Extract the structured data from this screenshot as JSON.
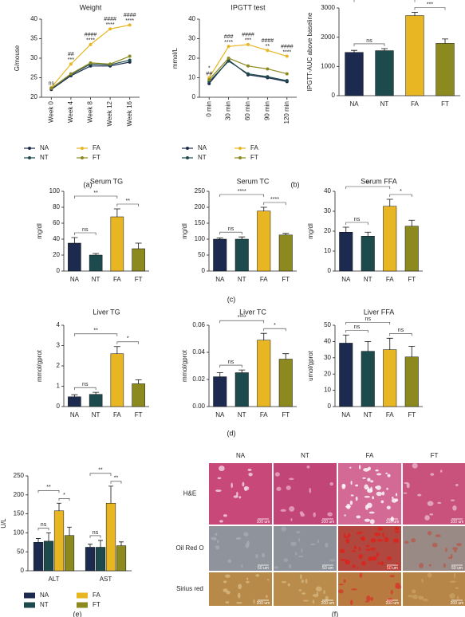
{
  "panel_labels": [
    "(a)",
    "(b)",
    "(c)",
    "(d)",
    "(e)",
    "(f)"
  ],
  "chart_data": [
    {
      "type": "line",
      "title": "Weight",
      "ylabel": "G/mouse",
      "categories": [
        "Week 0",
        "Week 4",
        "Week 8",
        "Week 12",
        "Week 16"
      ],
      "ylim": [
        20,
        40
      ],
      "yticks": [
        20,
        25,
        30,
        35,
        40
      ],
      "series": [
        {
          "name": "NA",
          "color": "#1b2a4e",
          "values": [
            22,
            25.5,
            28,
            28,
            29
          ]
        },
        {
          "name": "NT",
          "color": "#1d4a4c",
          "values": [
            22.3,
            25.8,
            28.5,
            28.3,
            29.5
          ]
        },
        {
          "name": "FA",
          "color": "#e8b623",
          "values": [
            22.5,
            28.5,
            33.5,
            37.5,
            38.5
          ]
        },
        {
          "name": "FT",
          "color": "#8c8a1e",
          "values": [
            22.3,
            26,
            28.8,
            28.5,
            30.5
          ]
        }
      ],
      "annotations": [
        [
          "ns"
        ],
        [
          "##",
          "***"
        ],
        [
          "####",
          "****"
        ],
        [
          "####",
          "****"
        ],
        [
          "####",
          "****"
        ]
      ]
    },
    {
      "type": "line",
      "title": "IPGTT test",
      "ylabel": "mmol/L",
      "categories": [
        "0 min",
        "30 min",
        "60 min",
        "90 min",
        "120 min"
      ],
      "ylim": [
        0,
        40
      ],
      "yticks": [
        0,
        10,
        20,
        30,
        40
      ],
      "series": [
        {
          "name": "NA",
          "color": "#1b2a4e",
          "values": [
            7,
            19,
            11.5,
            10,
            8
          ]
        },
        {
          "name": "NT",
          "color": "#1d4a4c",
          "values": [
            8,
            18.5,
            12,
            10.5,
            8.5
          ]
        },
        {
          "name": "FA",
          "color": "#e8b623",
          "values": [
            10,
            26,
            27,
            24,
            21
          ]
        },
        {
          "name": "FT",
          "color": "#8c8a1e",
          "values": [
            9,
            20,
            16,
            14.5,
            12
          ]
        }
      ],
      "annotations": [
        [
          "*",
          "##"
        ],
        [
          "###",
          "****"
        ],
        [
          "####",
          "***"
        ],
        [
          "####",
          "**"
        ],
        [
          "####",
          "****"
        ]
      ]
    },
    {
      "type": "bar",
      "ylabel": "IPGTT-AUC above baseline",
      "categories": [
        "NA",
        "NT",
        "FA",
        "FT"
      ],
      "values": [
        1480,
        1540,
        2740,
        1790
      ],
      "errors": [
        70,
        70,
        110,
        150
      ],
      "colors": [
        "#1b2a4e",
        "#1d4a4c",
        "#e8b623",
        "#8c8a1e"
      ],
      "ylim": [
        0,
        3000
      ],
      "yticks": [
        0,
        1000,
        2000,
        3000
      ],
      "brackets": [
        {
          "pair": [
            0,
            1
          ],
          "label": "ns"
        },
        {
          "pair": [
            0,
            2
          ],
          "label": "****"
        },
        {
          "pair": [
            2,
            3
          ],
          "label": "***"
        }
      ]
    },
    {
      "type": "bar",
      "title": "Serum TG",
      "ylabel": "mg/dl",
      "categories": [
        "NA",
        "NT",
        "FA",
        "FT"
      ],
      "values": [
        35,
        20,
        68,
        28
      ],
      "errors": [
        7,
        2,
        10,
        7
      ],
      "colors": [
        "#1b2a4e",
        "#1d4a4c",
        "#e8b623",
        "#8c8a1e"
      ],
      "ylim": [
        0,
        100
      ],
      "yticks": [
        0,
        20,
        40,
        60,
        80,
        100
      ],
      "brackets": [
        {
          "pair": [
            0,
            1
          ],
          "label": "ns"
        },
        {
          "pair": [
            0,
            2
          ],
          "label": "**"
        },
        {
          "pair": [
            2,
            3
          ],
          "label": "**"
        }
      ]
    },
    {
      "type": "bar",
      "title": "Serum TC",
      "ylabel": "mg/dl",
      "categories": [
        "NA",
        "NT",
        "FA",
        "FT"
      ],
      "values": [
        100,
        100,
        188,
        113
      ],
      "errors": [
        4,
        7,
        12,
        5
      ],
      "colors": [
        "#1b2a4e",
        "#1d4a4c",
        "#e8b623",
        "#8c8a1e"
      ],
      "ylim": [
        0,
        250
      ],
      "yticks": [
        0,
        50,
        100,
        150,
        200,
        250
      ],
      "brackets": [
        {
          "pair": [
            0,
            1
          ],
          "label": "ns"
        },
        {
          "pair": [
            0,
            2
          ],
          "label": "****"
        },
        {
          "pair": [
            2,
            3
          ],
          "label": "****"
        }
      ]
    },
    {
      "type": "bar",
      "title": "Serum FFA",
      "ylabel": "mg/dl",
      "categories": [
        "NA",
        "NT",
        "FA",
        "FT"
      ],
      "values": [
        19.5,
        17.5,
        32.5,
        22.5
      ],
      "errors": [
        2.5,
        2,
        3.5,
        3
      ],
      "colors": [
        "#1b2a4e",
        "#1d4a4c",
        "#e8b623",
        "#8c8a1e"
      ],
      "ylim": [
        0,
        40
      ],
      "yticks": [
        0,
        10,
        20,
        30,
        40
      ],
      "brackets": [
        {
          "pair": [
            0,
            1
          ],
          "label": "ns"
        },
        {
          "pair": [
            0,
            2
          ],
          "label": "**"
        },
        {
          "pair": [
            2,
            3
          ],
          "label": "*"
        }
      ]
    },
    {
      "type": "bar",
      "title": "Liver TG",
      "ylabel": "mmol/gprot",
      "categories": [
        "NA",
        "NT",
        "FA",
        "FT"
      ],
      "values": [
        0.48,
        0.6,
        2.6,
        1.12
      ],
      "errors": [
        0.1,
        0.1,
        0.35,
        0.2
      ],
      "colors": [
        "#1b2a4e",
        "#1d4a4c",
        "#e8b623",
        "#8c8a1e"
      ],
      "ylim": [
        0,
        4
      ],
      "yticks": [
        0,
        1,
        2,
        3,
        4
      ],
      "brackets": [
        {
          "pair": [
            0,
            1
          ],
          "label": "ns"
        },
        {
          "pair": [
            0,
            2
          ],
          "label": "**"
        },
        {
          "pair": [
            2,
            3
          ],
          "label": "*"
        }
      ]
    },
    {
      "type": "bar",
      "title": "Liver TC",
      "ylabel": "mmol/gprot",
      "categories": [
        "NA",
        "NT",
        "FA",
        "FT"
      ],
      "values": [
        0.022,
        0.025,
        0.049,
        0.035
      ],
      "errors": [
        0.003,
        0.002,
        0.005,
        0.004
      ],
      "colors": [
        "#1b2a4e",
        "#1d4a4c",
        "#e8b623",
        "#8c8a1e"
      ],
      "ylim": [
        0,
        0.06
      ],
      "yticks": [
        {
          "value": 0,
          "label": "0.00"
        },
        0.02,
        0.04,
        0.06
      ],
      "brackets": [
        {
          "pair": [
            0,
            1
          ],
          "label": "ns"
        },
        {
          "pair": [
            0,
            2
          ],
          "label": "****"
        },
        {
          "pair": [
            2,
            3
          ],
          "label": "*"
        }
      ]
    },
    {
      "type": "bar",
      "title": "Liver FFA",
      "ylabel": "umol/gprot",
      "categories": [
        "NA",
        "NT",
        "FA",
        "FT"
      ],
      "values": [
        39,
        34,
        35,
        30.5
      ],
      "errors": [
        5,
        6,
        7,
        6.5
      ],
      "colors": [
        "#1b2a4e",
        "#1d4a4c",
        "#e8b623",
        "#8c8a1e"
      ],
      "ylim": [
        0,
        50
      ],
      "yticks": [
        0,
        10,
        20,
        30,
        40,
        50
      ],
      "brackets": [
        {
          "pair": [
            0,
            1
          ],
          "label": "ns"
        },
        {
          "pair": [
            0,
            2
          ],
          "label": "ns"
        },
        {
          "pair": [
            2,
            3
          ],
          "label": "ns"
        }
      ]
    },
    {
      "type": "grouped_bar",
      "ylabel": "U/L",
      "categories": [
        "ALT",
        "AST"
      ],
      "ylim": [
        0,
        250
      ],
      "yticks": [
        0,
        50,
        100,
        150,
        200,
        250
      ],
      "series": [
        {
          "name": "NA",
          "color": "#1b2a4e",
          "values": [
            75,
            62
          ],
          "errors": [
            10,
            8
          ]
        },
        {
          "name": "NT",
          "color": "#1d4a4c",
          "values": [
            78,
            62
          ],
          "errors": [
            22,
            18
          ]
        },
        {
          "name": "FA",
          "color": "#e8b623",
          "values": [
            158,
            178
          ],
          "errors": [
            20,
            45
          ]
        },
        {
          "name": "FT",
          "color": "#8c8a1e",
          "values": [
            93,
            66
          ],
          "errors": [
            22,
            10
          ]
        }
      ],
      "brackets": [
        [
          {
            "pair": [
              0,
              1
            ],
            "label": "ns"
          },
          {
            "pair": [
              0,
              2
            ],
            "label": "**"
          },
          {
            "pair": [
              2,
              3
            ],
            "label": "*"
          }
        ],
        [
          {
            "pair": [
              0,
              1
            ],
            "label": "ns"
          },
          {
            "pair": [
              0,
              2
            ],
            "label": "**"
          },
          {
            "pair": [
              2,
              3
            ],
            "label": "**"
          }
        ]
      ]
    }
  ],
  "histology": {
    "columns": [
      "NA",
      "NT",
      "FA",
      "FT"
    ],
    "rows": [
      {
        "label": "H&E",
        "scale": "100 um"
      },
      {
        "label": "Oil Red O",
        "scale": "50 um"
      },
      {
        "label": "Sirius red",
        "scale": "200 um"
      }
    ]
  }
}
